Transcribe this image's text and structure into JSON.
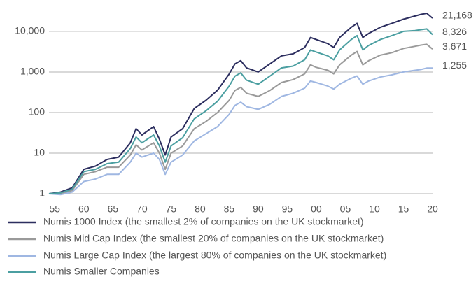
{
  "chart_data": {
    "type": "line",
    "yscale": "log",
    "grid": true,
    "legend": "bottom",
    "x": [
      1954,
      1956,
      1958,
      1960,
      1962,
      1964,
      1966,
      1968,
      1969,
      1970,
      1972,
      1973,
      1974,
      1975,
      1977,
      1979,
      1981,
      1983,
      1985,
      1986,
      1987,
      1988,
      1990,
      1992,
      1994,
      1996,
      1998,
      1999,
      2000,
      2002,
      2003,
      2004,
      2006,
      2007,
      2008,
      2009,
      2011,
      2013,
      2015,
      2017,
      2018,
      2019,
      2020
    ],
    "xlim": [
      1954,
      2020
    ],
    "xticks": [
      {
        "value": 1955,
        "label": "55"
      },
      {
        "value": 1960,
        "label": "60"
      },
      {
        "value": 1965,
        "label": "65"
      },
      {
        "value": 1970,
        "label": "70"
      },
      {
        "value": 1975,
        "label": "75"
      },
      {
        "value": 1980,
        "label": "80"
      },
      {
        "value": 1985,
        "label": "85"
      },
      {
        "value": 1990,
        "label": "90"
      },
      {
        "value": 1995,
        "label": "95"
      },
      {
        "value": 2000,
        "label": "00"
      },
      {
        "value": 2005,
        "label": "05"
      },
      {
        "value": 2010,
        "label": "10"
      },
      {
        "value": 2015,
        "label": "15"
      },
      {
        "value": 2020,
        "label": "20"
      }
    ],
    "ylim": [
      0.8,
      40000
    ],
    "yticks": [
      1,
      10,
      100,
      {
        "value": 1000,
        "label": "1,000"
      },
      {
        "value": 10000,
        "label": "10,000"
      }
    ],
    "series": [
      {
        "name": "Numis 1000 Index (the smallest 2% of companies on the UK stockmarket)",
        "color": "#2c2e5f",
        "values": [
          1,
          1.1,
          1.4,
          4,
          4.8,
          7,
          8,
          18,
          40,
          28,
          45,
          22,
          9,
          25,
          40,
          126,
          200,
          355,
          890,
          1580,
          1900,
          1260,
          1000,
          1580,
          2500,
          2800,
          4000,
          7100,
          6300,
          5000,
          4000,
          7100,
          12600,
          15800,
          7100,
          8900,
          12600,
          15800,
          20000,
          24000,
          26300,
          28000,
          21168
        ],
        "value_labels": [
          null,
          null,
          null,
          null,
          null,
          null,
          null,
          null,
          null,
          null,
          null,
          null,
          null,
          null,
          null,
          null,
          null,
          null,
          null,
          null,
          null,
          null,
          null,
          null,
          null,
          null,
          null,
          null,
          null,
          null,
          null,
          null,
          null,
          null,
          null,
          null,
          null,
          null,
          null,
          null,
          null,
          null,
          "21,168"
        ]
      },
      {
        "name": "Numis Mid Cap Index (the smallest 20% of companies on the UK stockmarket)",
        "color": "#9a9a9a",
        "values": [
          1,
          1,
          1.2,
          3,
          3.5,
          4.5,
          4.5,
          9,
          16,
          12,
          18,
          10,
          4,
          10,
          15,
          40,
          60,
          100,
          200,
          350,
          420,
          300,
          250,
          350,
          550,
          650,
          900,
          1500,
          1300,
          1100,
          900,
          1500,
          2600,
          3200,
          1500,
          1900,
          2600,
          3000,
          3800,
          4300,
          4600,
          4800,
          3671
        ],
        "value_labels": [
          null,
          null,
          null,
          null,
          null,
          null,
          null,
          null,
          null,
          null,
          null,
          null,
          null,
          null,
          null,
          null,
          null,
          null,
          null,
          null,
          null,
          null,
          null,
          null,
          null,
          null,
          null,
          null,
          null,
          null,
          null,
          null,
          null,
          null,
          null,
          null,
          null,
          null,
          null,
          null,
          null,
          null,
          "3,671"
        ]
      },
      {
        "name": "Numis Large Cap Index (the largest 80% of companies on the UK stockmarket)",
        "color": "#9fb7e2",
        "values": [
          1,
          0.95,
          1.1,
          2,
          2.3,
          3,
          3,
          6,
          10,
          8,
          10,
          7,
          3,
          6,
          9,
          20,
          30,
          45,
          90,
          150,
          180,
          140,
          120,
          160,
          250,
          300,
          400,
          600,
          550,
          450,
          380,
          500,
          700,
          800,
          500,
          600,
          750,
          850,
          1000,
          1100,
          1150,
          1250,
          1255
        ],
        "value_labels": [
          null,
          null,
          null,
          null,
          null,
          null,
          null,
          null,
          null,
          null,
          null,
          null,
          null,
          null,
          null,
          null,
          null,
          null,
          null,
          null,
          null,
          null,
          null,
          null,
          null,
          null,
          null,
          null,
          null,
          null,
          null,
          null,
          null,
          null,
          null,
          null,
          null,
          null,
          null,
          null,
          null,
          null,
          "1,255"
        ]
      },
      {
        "name": "Numis Smaller Companies",
        "color": "#4b9fa1",
        "values": [
          1,
          1.05,
          1.3,
          3.5,
          4,
          5.5,
          6,
          13,
          25,
          18,
          28,
          15,
          6,
          15,
          24,
          70,
          110,
          190,
          450,
          790,
          950,
          630,
          500,
          790,
          1260,
          1400,
          2000,
          3500,
          3100,
          2500,
          2000,
          3500,
          6300,
          7900,
          3500,
          4500,
          6300,
          7900,
          10000,
          10500,
          11000,
          11500,
          8326
        ],
        "value_labels": [
          null,
          null,
          null,
          null,
          null,
          null,
          null,
          null,
          null,
          null,
          null,
          null,
          null,
          null,
          null,
          null,
          null,
          null,
          null,
          null,
          null,
          null,
          null,
          null,
          null,
          null,
          null,
          null,
          null,
          null,
          null,
          null,
          null,
          null,
          null,
          null,
          null,
          null,
          null,
          null,
          null,
          null,
          "8,326"
        ]
      }
    ]
  }
}
